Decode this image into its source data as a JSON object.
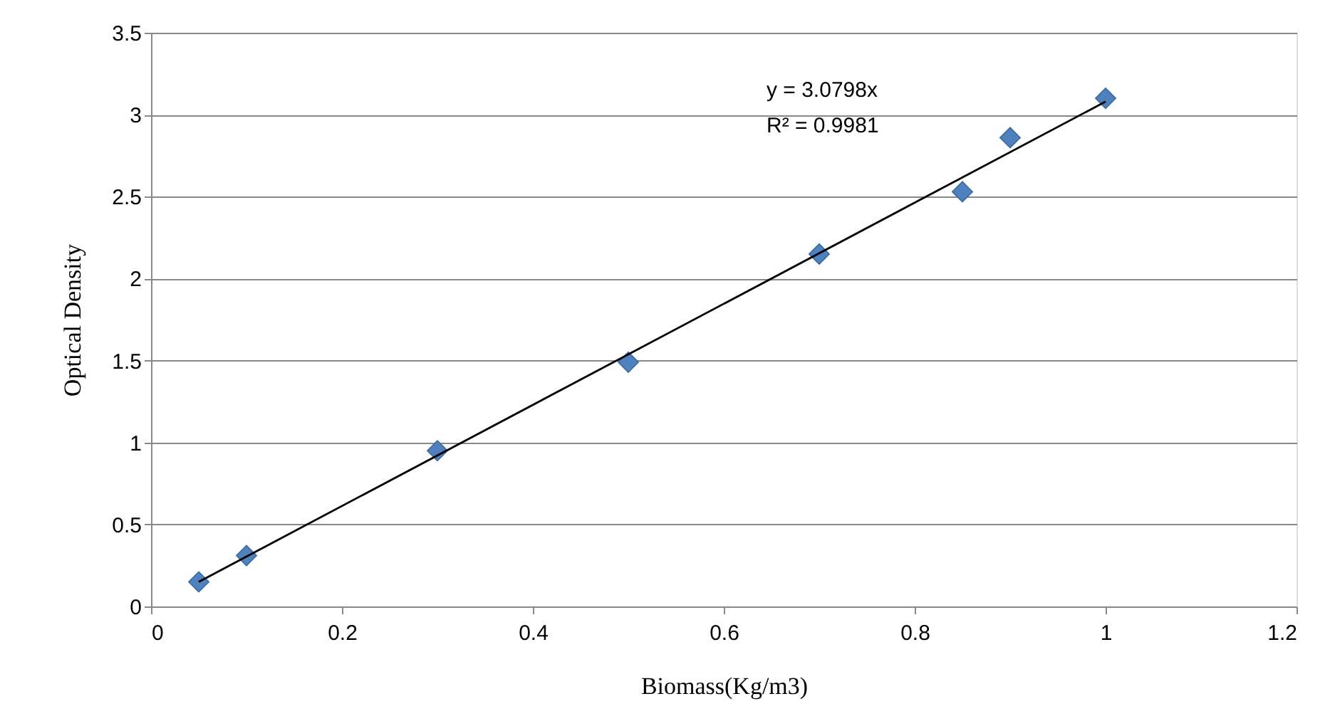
{
  "chart_data": {
    "type": "scatter",
    "xlabel": "Biomass(Kg/m3)",
    "ylabel": "Optical Density",
    "xlim": [
      0,
      1.2
    ],
    "xticks": [
      0,
      0.2,
      0.4,
      0.6,
      0.8,
      1,
      1.2
    ],
    "ylim": [
      0,
      3.5
    ],
    "yticks": [
      0,
      0.5,
      1,
      1.5,
      2,
      2.5,
      3,
      3.5
    ],
    "grid": "y",
    "marker": "diamond",
    "series": [
      {
        "color": "#4f81bd",
        "x": [
          0.05,
          0.1,
          0.3,
          0.5,
          0.7,
          0.85,
          0.9,
          1.0
        ],
        "values": [
          0.15,
          0.31,
          0.95,
          1.49,
          2.15,
          2.53,
          2.86,
          3.1
        ]
      },
      {
        "type": "line",
        "marker": "none",
        "color": "#000000",
        "x": [
          0.05,
          1.0
        ],
        "values": [
          0.15,
          3.08
        ]
      }
    ],
    "annotations": [
      "y = 3.0798x",
      "R² = 0.9981"
    ]
  }
}
